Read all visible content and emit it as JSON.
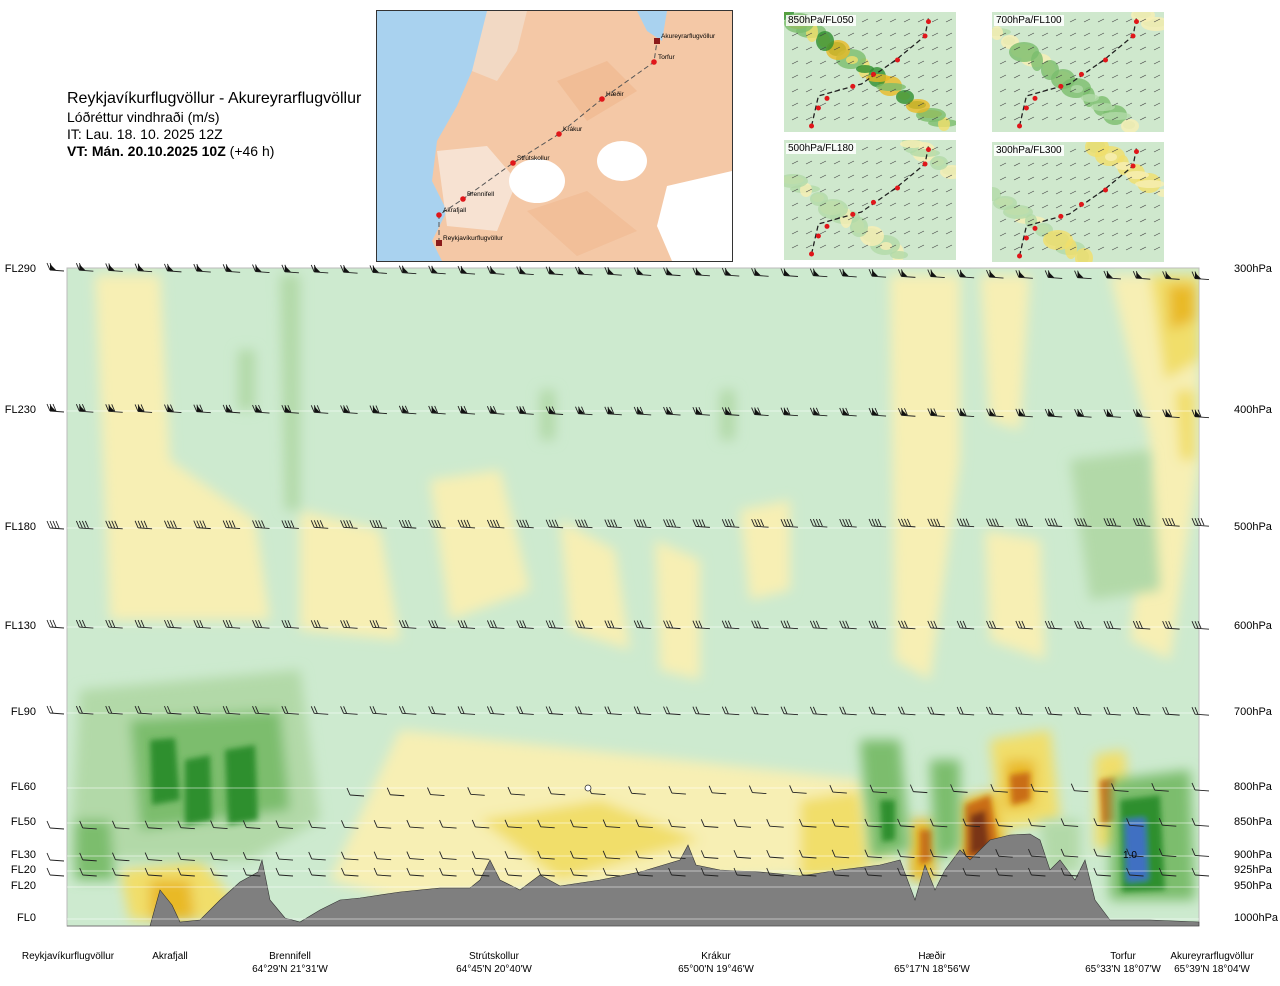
{
  "header": {
    "route": "Reykjavíkurflugvöllur - Akureyrarflugvöllur",
    "parameter": "Lóðréttur vindhraði (m/s)",
    "issue_time": "IT: Lau. 18. 10. 2025 12Z",
    "valid_time": "VT: Mán. 20.10.2025 10Z",
    "valid_offset": "(+46 h)"
  },
  "route_map": {
    "points": [
      {
        "name": "Reykjavíkurflugvöllur",
        "type": "airport"
      },
      {
        "name": "Akrafjall",
        "type": "waypoint"
      },
      {
        "name": "Brennifell",
        "type": "waypoint"
      },
      {
        "name": "Strútskollur",
        "type": "waypoint"
      },
      {
        "name": "Krákur",
        "type": "waypoint"
      },
      {
        "name": "Hæðir",
        "type": "waypoint"
      },
      {
        "name": "Torfur",
        "type": "waypoint"
      },
      {
        "name": "Akureyrarflugvöllur",
        "type": "airport"
      }
    ]
  },
  "mini_maps": [
    {
      "label": "850hPa/FL050"
    },
    {
      "label": "700hPa/FL100"
    },
    {
      "label": "500hPa/FL180"
    },
    {
      "label": "300hPa/FL300"
    }
  ],
  "chart_data": {
    "type": "heatmap",
    "description_units": "m/s",
    "flight_levels": [
      "FL290",
      "FL230",
      "FL180",
      "FL130",
      "FL90",
      "FL60",
      "FL50",
      "FL30",
      "FL20",
      "FL20",
      "FL0"
    ],
    "pressure_levels": [
      "300hPa",
      "400hPa",
      "500hPa",
      "600hPa",
      "700hPa",
      "800hPa",
      "850hPa",
      "900hPa",
      "925hPa",
      "950hPa",
      "1000hPa"
    ],
    "locations": [
      {
        "name": "Reykjavíkurflugvöllur",
        "coord": ""
      },
      {
        "name": "Akrafjall",
        "coord": ""
      },
      {
        "name": "Brennifell",
        "coord": "64°29'N 21°31'W"
      },
      {
        "name": "Strútskollur",
        "coord": "64°45'N 20°40'W"
      },
      {
        "name": "Krákur",
        "coord": "65°00'N 19°46'W"
      },
      {
        "name": "Hæðir",
        "coord": "65°17'N 18°56'W"
      },
      {
        "name": "Torfur",
        "coord": "65°33'N 18°07'W"
      },
      {
        "name": "Akureyrarflugvöllur",
        "coord": "65°39'N 18°04'W"
      }
    ],
    "annotation": "1.0",
    "colors": {
      "background": "#cdeacf",
      "strong_down": "#2f8f2f",
      "down": "#7bbd6d",
      "weak_down": "#b2d9a8",
      "neutral": "#f3f8e8",
      "weak_up": "#f7efb4",
      "up": "#f1de6a",
      "strong_up": "#e9b925",
      "very_strong_up": "#c96d16",
      "extreme_up": "#7a3513",
      "extreme_down": "#3f6fc2",
      "terrain": "#7f7f7f"
    }
  }
}
